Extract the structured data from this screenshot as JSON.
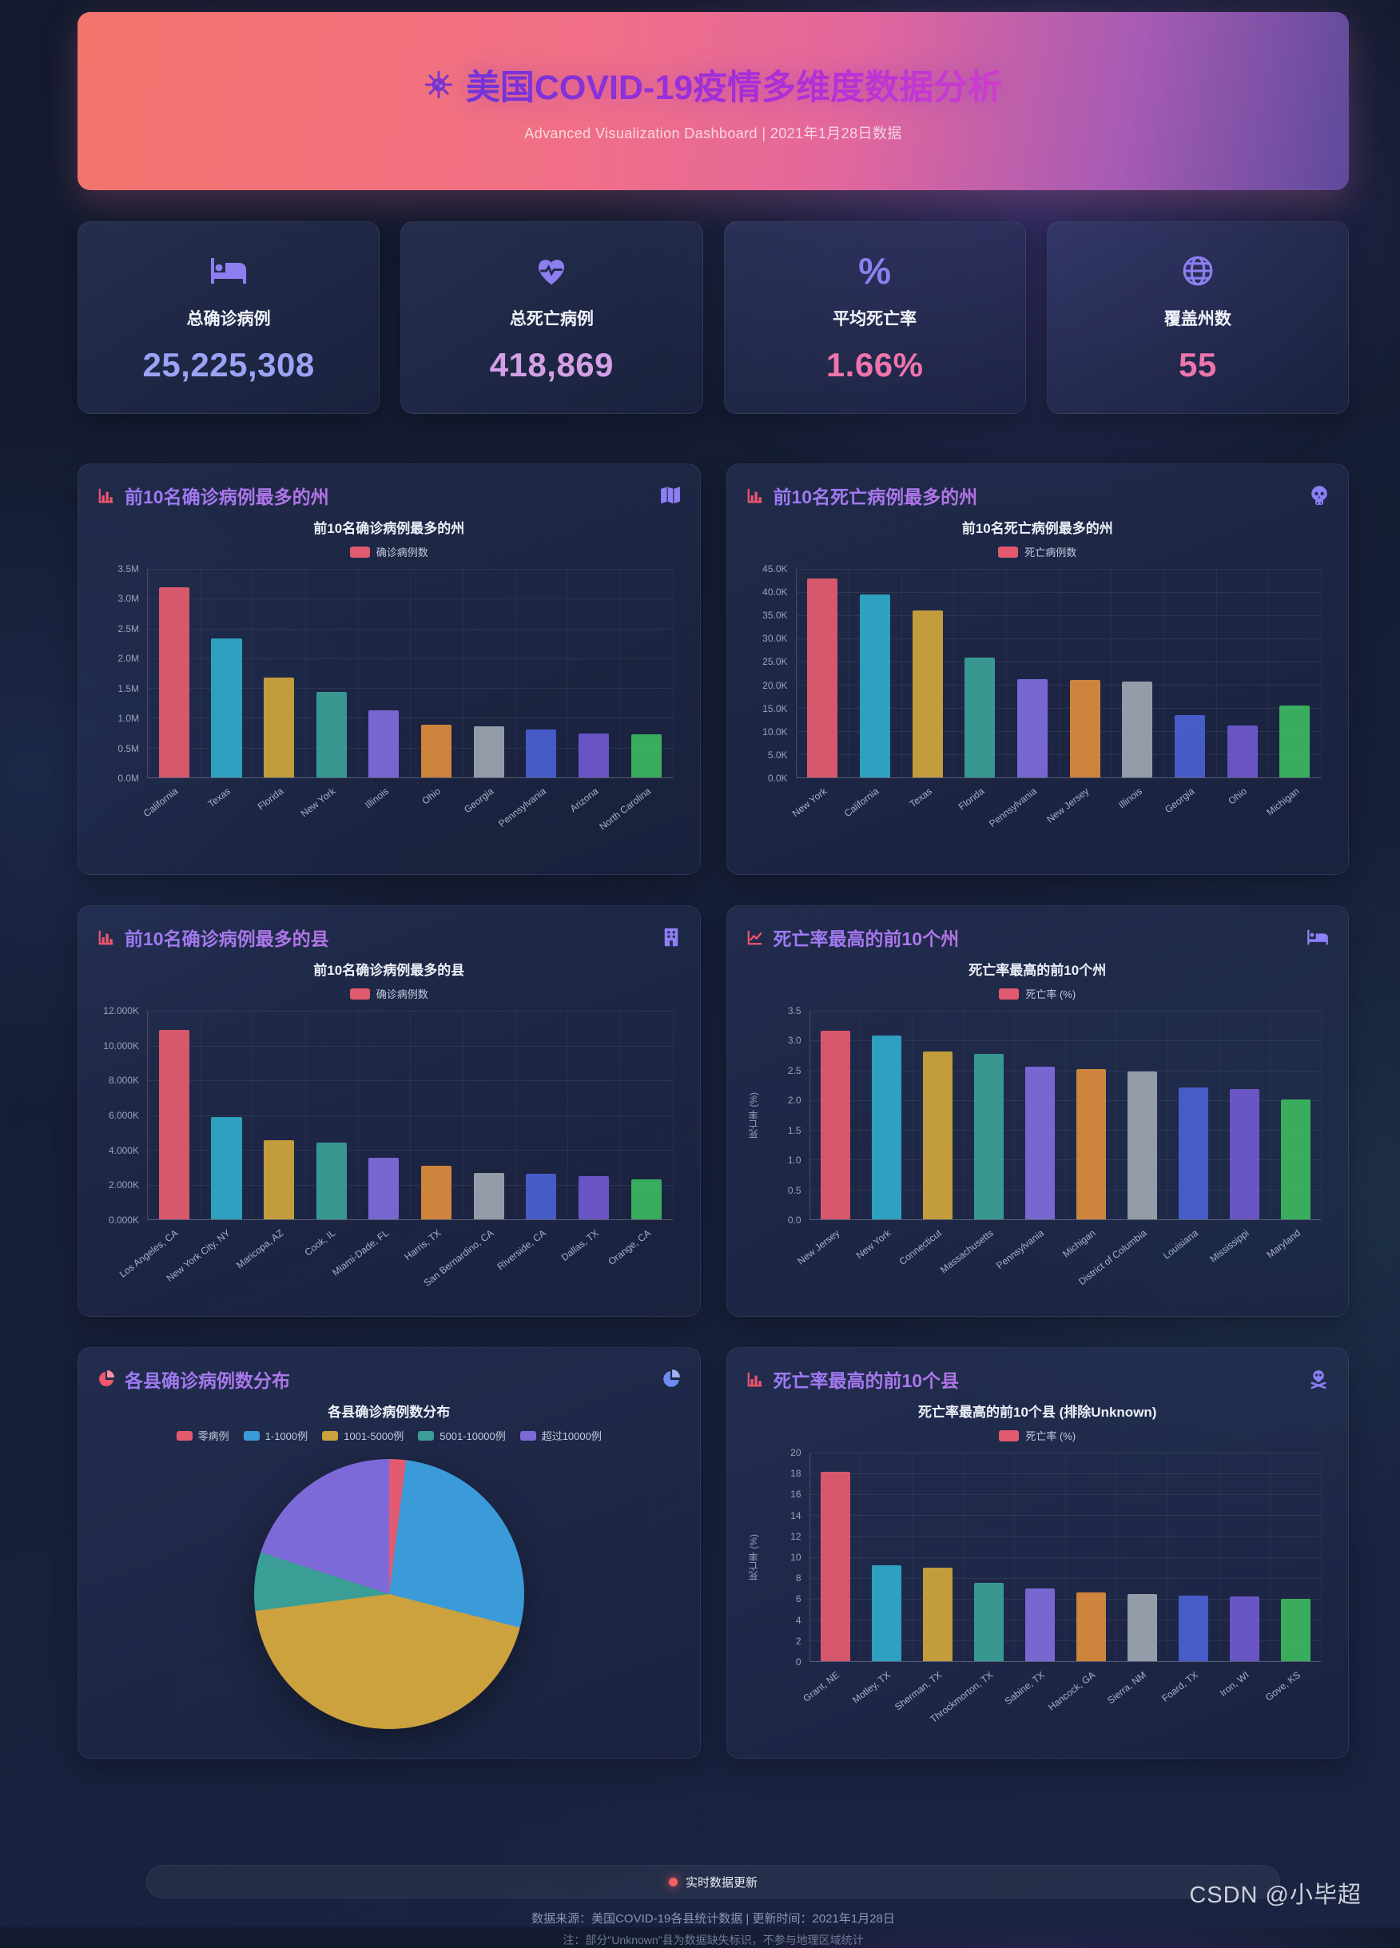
{
  "header": {
    "title": "美国COVID-19疫情多维度数据分析",
    "subtitle": "Advanced Visualization Dashboard | 2021年1月28日数据",
    "icon": "virus-icon"
  },
  "stats": [
    {
      "icon": "bed-patient-icon",
      "label": "总确诊病例",
      "value": "25,225,308",
      "value_color": "#9ba3f5"
    },
    {
      "icon": "heart-pulse-icon",
      "label": "总死亡病例",
      "value": "418,869",
      "value_color": "#d3a0e6"
    },
    {
      "icon": "percent-icon",
      "label": "平均死亡率",
      "value": "1.66%",
      "value_color": "#ee74ab"
    },
    {
      "icon": "globe-icon",
      "label": "覆盖州数",
      "value": "55",
      "value_color": "#ee74ab"
    }
  ],
  "panels": [
    {
      "title": "前10名确诊病例最多的州",
      "left_icon": "bar-chart-icon",
      "right_icon": "map-icon"
    },
    {
      "title": "前10名死亡病例最多的州",
      "left_icon": "bar-chart-icon",
      "right_icon": "skull-icon"
    },
    {
      "title": "前10名确诊病例最多的县",
      "left_icon": "bar-chart-icon",
      "right_icon": "hospital-building-icon"
    },
    {
      "title": "死亡率最高的前10个州",
      "left_icon": "line-chart-icon",
      "right_icon": "bed-icon"
    },
    {
      "title": "各县确诊病例数分布",
      "left_icon": "pie-chart-icon",
      "right_icon": "pie-icon"
    },
    {
      "title": "死亡率最高的前10个县",
      "left_icon": "bar-chart-icon",
      "right_icon": "skull-crossbones-icon"
    }
  ],
  "chart_data": [
    {
      "type": "bar",
      "title": "前10名确诊病例最多的州",
      "legend": "确诊病例数",
      "legend_color": "#e25a6f",
      "categories": [
        "California",
        "Texas",
        "Florida",
        "New York",
        "Illinois",
        "Ohio",
        "Georgia",
        "Pennsylvania",
        "Arizona",
        "North Carolina"
      ],
      "values": [
        3.19,
        2.34,
        1.67,
        1.44,
        1.12,
        0.88,
        0.86,
        0.81,
        0.74,
        0.72
      ],
      "unit": "M",
      "ymax": 3.5,
      "yticks": [
        "3.5M",
        "3.0M",
        "2.5M",
        "2.0M",
        "1.5M",
        "1.0M",
        "0.5M",
        "0.0M"
      ]
    },
    {
      "type": "bar",
      "title": "前10名死亡病例最多的州",
      "legend": "死亡病例数",
      "legend_color": "#e25a6f",
      "categories": [
        "New York",
        "California",
        "Texas",
        "Florida",
        "Pennsylvania",
        "New Jersey",
        "Illinois",
        "Georgia",
        "Ohio",
        "Michigan"
      ],
      "values": [
        42.9,
        39.5,
        36.1,
        25.9,
        21.2,
        21.0,
        20.7,
        13.5,
        11.2,
        15.5
      ],
      "unit": "K",
      "ymax": 45,
      "yticks": [
        "45.0K",
        "40.0K",
        "35.0K",
        "30.0K",
        "25.0K",
        "20.0K",
        "15.0K",
        "10.0K",
        "5.0K",
        "0.0K"
      ]
    },
    {
      "type": "bar",
      "title": "前10名确诊病例最多的县",
      "legend": "确诊病例数",
      "legend_color": "#e25a6f",
      "categories": [
        "Los Angeles, CA",
        "New York City, NY",
        "Maricopa, AZ",
        "Cook, IL",
        "Miami-Dade, FL",
        "Harris, TX",
        "San Bernardino, CA",
        "Riverside, CA",
        "Dallas, TX",
        "Orange, CA"
      ],
      "values": [
        10.9,
        5.9,
        4.55,
        4.4,
        3.55,
        3.1,
        2.65,
        2.6,
        2.5,
        2.3
      ],
      "unit": "100K",
      "ymax": 12,
      "yticks": [
        "12.000K",
        "10.000K",
        "8.000K",
        "6.000K",
        "4.000K",
        "2.000K",
        "0.000K"
      ]
    },
    {
      "type": "bar",
      "title": "死亡率最高的前10个州",
      "legend": "死亡率 (%)",
      "legend_color": "#e25a6f",
      "ylabel": "死亡率 (%)",
      "categories": [
        "New Jersey",
        "New York",
        "Connecticut",
        "Massachusetts",
        "Pennsylvania",
        "Michigan",
        "District of Columbia",
        "Louisiana",
        "Mississippi",
        "Maryland"
      ],
      "values": [
        3.17,
        3.08,
        2.82,
        2.77,
        2.56,
        2.52,
        2.48,
        2.21,
        2.18,
        2.01
      ],
      "unit": "%",
      "ymax": 3.5,
      "yticks": [
        "3.5",
        "3.0",
        "2.5",
        "2.0",
        "1.5",
        "1.0",
        "0.5",
        "0.0"
      ]
    },
    {
      "type": "pie",
      "title": "各县确诊病例数分布",
      "slices": [
        {
          "label": "零病例",
          "percent": 2,
          "color": "#e25a6f"
        },
        {
          "label": "1-1000例",
          "percent": 27,
          "color": "#3b9ad8"
        },
        {
          "label": "1001-5000例",
          "percent": 44,
          "color": "#cba23d"
        },
        {
          "label": "5001-10000例",
          "percent": 7,
          "color": "#3a9e96"
        },
        {
          "label": "超过10000例",
          "percent": 20,
          "color": "#7d6ad8"
        }
      ]
    },
    {
      "type": "bar",
      "title": "死亡率最高的前10个县 (排除Unknown)",
      "legend": "死亡率 (%)",
      "legend_color": "#e25a6f",
      "ylabel": "死亡率 (%)",
      "categories": [
        "Grant, NE",
        "Motley, TX",
        "Sherman, TX",
        "Throckmorton, TX",
        "Sabine, TX",
        "Hancock, GA",
        "Sierra, NM",
        "Foard, TX",
        "Iron, WI",
        "Gove, KS"
      ],
      "values": [
        18.2,
        9.2,
        9.0,
        7.5,
        7.0,
        6.6,
        6.4,
        6.3,
        6.2,
        6.0
      ],
      "unit": "%",
      "ymax": 20,
      "yticks": [
        "20",
        "18",
        "16",
        "14",
        "12",
        "10",
        "8",
        "6",
        "4",
        "2",
        "0"
      ]
    }
  ],
  "theme": {
    "bar_palette": [
      "#e25a6f",
      "#2fa6c7",
      "#cba23d",
      "#3a9e96",
      "#7d6ad8",
      "#d8893c",
      "#9aa2ae",
      "#4a5fd0",
      "#6f57cc",
      "#3cb45f"
    ],
    "legend_red": "#e25a6f",
    "accent_purple": "#8d7ff5",
    "icon_red": "#f0566e",
    "live_dot_color": "#f25f5f"
  },
  "footer": {
    "live_text": "实时数据更新",
    "source_line": "数据来源：美国COVID-19各县统计数据 | 更新时间：2021年1月28日",
    "note_line": "注：部分\"Unknown\"县为数据缺失标识，不参与地理区域统计"
  },
  "watermark": {
    "text": "CSDN @小毕超"
  }
}
